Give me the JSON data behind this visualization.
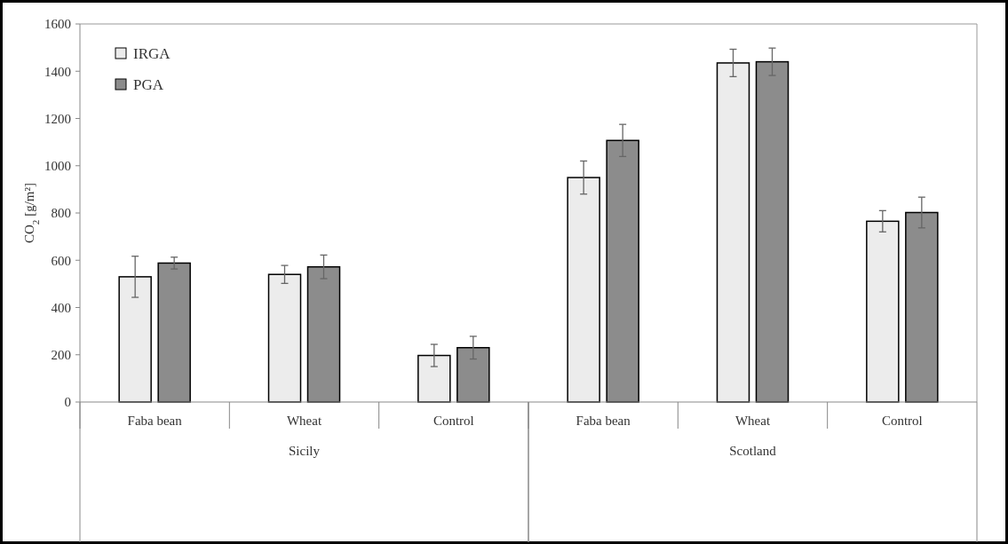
{
  "chart_data": {
    "type": "bar",
    "ylabel": "CO$_{2}$  [g/m²]",
    "categories": [
      "Faba bean",
      "Wheat",
      "Control",
      "Faba bean",
      "Wheat",
      "Control"
    ],
    "series": [
      {
        "name": "IRGA",
        "color": "#ececec",
        "values": [
          530,
          540,
          197,
          950,
          1435,
          765
        ],
        "errors": [
          87,
          38,
          47,
          70,
          58,
          45
        ]
      },
      {
        "name": "PGA",
        "color": "#8c8c8c",
        "values": [
          588,
          572,
          230,
          1107,
          1440,
          802
        ],
        "errors": [
          25,
          50,
          48,
          68,
          58,
          65
        ]
      }
    ],
    "annotations": [
      "Sicily",
      "Scotland"
    ],
    "ylim": [
      0,
      1600
    ],
    "yticks": [
      0,
      200,
      400,
      600,
      800,
      1000,
      1200,
      1400,
      1600
    ],
    "grid": false,
    "legend": "top left"
  }
}
